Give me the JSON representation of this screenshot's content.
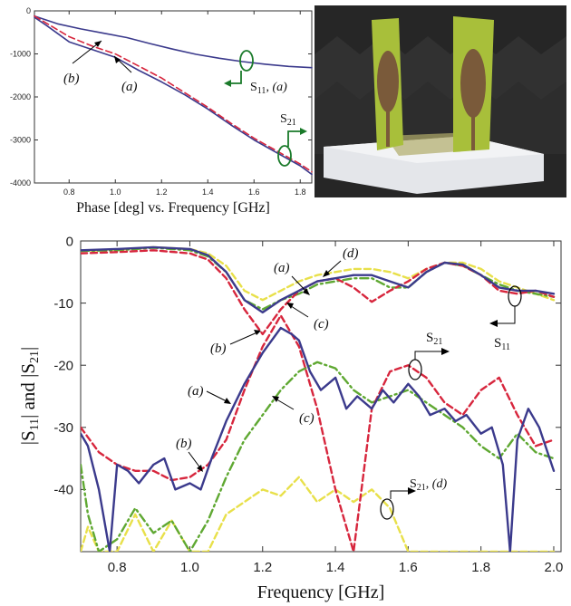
{
  "figure": {
    "photo_description_colors": {
      "wall": "#2a2a2a",
      "foam": "#e4e6ea",
      "board": "#a8bf3a",
      "patch": "#7a5a3a"
    }
  },
  "chart_data": [
    {
      "type": "line",
      "title": "",
      "caption": "Phase [deg] vs. Frequency [GHz]",
      "xlabel": "",
      "ylabel": "",
      "xlim": [
        0.65,
        1.85
      ],
      "ylim": [
        -4000,
        0
      ],
      "xticks": [
        "0.8",
        "1.0",
        "1.2",
        "1.4",
        "1.6",
        "1.8"
      ],
      "xtick_values": [
        0.8,
        1.0,
        1.2,
        1.4,
        1.6,
        1.8
      ],
      "yticks": [
        "0",
        "-1000",
        "-2000",
        "-3000",
        "-4000"
      ],
      "ytick_values": [
        0,
        -1000,
        -2000,
        -3000,
        -4000
      ],
      "grid": false,
      "series": [
        {
          "key": "s11_a",
          "color": "#3b3a8c",
          "dash": "solid",
          "x": [
            0.65,
            0.75,
            0.85,
            0.95,
            1.05,
            1.15,
            1.25,
            1.35,
            1.45,
            1.55,
            1.65,
            1.75,
            1.85
          ],
          "y": [
            -120,
            -300,
            -420,
            -520,
            -620,
            -760,
            -890,
            -1010,
            -1100,
            -1180,
            -1240,
            -1290,
            -1320
          ]
        },
        {
          "key": "s21_a",
          "color": "#3b3a8c",
          "dash": "solid",
          "x": [
            0.65,
            0.7,
            0.8,
            0.9,
            1.0,
            1.1,
            1.2,
            1.3,
            1.4,
            1.5,
            1.6,
            1.7,
            1.8,
            1.85
          ],
          "y": [
            -150,
            -330,
            -720,
            -900,
            -1080,
            -1380,
            -1650,
            -1950,
            -2280,
            -2650,
            -3000,
            -3300,
            -3600,
            -3800
          ]
        },
        {
          "key": "s21_b",
          "color": "#d7263d",
          "dash": "dashed",
          "x": [
            0.65,
            0.7,
            0.8,
            0.9,
            1.0,
            1.1,
            1.2,
            1.3,
            1.4,
            1.5,
            1.6,
            1.7,
            1.8,
            1.85
          ],
          "y": [
            -120,
            -280,
            -600,
            -820,
            -1000,
            -1280,
            -1560,
            -1900,
            -2240,
            -2610,
            -2960,
            -3260,
            -3560,
            -3740
          ]
        }
      ],
      "annotations": [
        "(b)",
        "(a)",
        "S11, (a)",
        "S21"
      ]
    },
    {
      "type": "line",
      "title": "",
      "xlabel": "Frequency [GHz]",
      "ylabel": "|S11| and |S21|",
      "xlim": [
        0.7,
        2.02
      ],
      "ylim": [
        -50,
        0
      ],
      "xticks": [
        "0.8",
        "1.0",
        "1.2",
        "1.4",
        "1.6",
        "1.8",
        "2.0"
      ],
      "xtick_values": [
        0.8,
        1.0,
        1.2,
        1.4,
        1.6,
        1.8,
        2.0
      ],
      "yticks": [
        "0",
        "-10",
        "-20",
        "-30",
        "-40"
      ],
      "ytick_values": [
        0,
        -10,
        -20,
        -30,
        -40
      ],
      "grid": false,
      "series": [
        {
          "key": "s11_d",
          "color": "#e8e04a",
          "dash": "dashed",
          "x": [
            0.7,
            0.8,
            0.9,
            1.0,
            1.05,
            1.1,
            1.15,
            1.2,
            1.25,
            1.3,
            1.35,
            1.4,
            1.45,
            1.5,
            1.55,
            1.6,
            1.65,
            1.7,
            1.75,
            1.8,
            1.85,
            1.9,
            1.95,
            2.0
          ],
          "y": [
            -1.6,
            -1.4,
            -1.0,
            -1.3,
            -2.0,
            -4.0,
            -8.0,
            -9.5,
            -8.0,
            -6.5,
            -5.5,
            -5.0,
            -4.5,
            -4.5,
            -5.0,
            -6.0,
            -4.5,
            -3.5,
            -3.5,
            -4.5,
            -6.5,
            -7.5,
            -8.5,
            -9.5
          ]
        },
        {
          "key": "s11_c",
          "color": "#5fa832",
          "dash": "dashdot",
          "x": [
            0.7,
            0.8,
            0.9,
            1.0,
            1.05,
            1.1,
            1.15,
            1.2,
            1.25,
            1.3,
            1.35,
            1.4,
            1.45,
            1.5,
            1.55,
            1.6,
            1.65,
            1.7,
            1.75,
            1.8,
            1.85,
            1.9,
            1.95,
            2.0
          ],
          "y": [
            -1.6,
            -1.5,
            -1.1,
            -1.5,
            -2.5,
            -5.0,
            -9.5,
            -11.0,
            -9.5,
            -8.5,
            -7.0,
            -6.5,
            -6.0,
            -6.0,
            -7.5,
            -7.5,
            -5.0,
            -3.5,
            -4.0,
            -5.5,
            -7.0,
            -8.0,
            -8.5,
            -9.0
          ]
        },
        {
          "key": "s11_b",
          "color": "#d7263d",
          "dash": "dashed",
          "x": [
            0.7,
            0.8,
            0.9,
            1.0,
            1.05,
            1.1,
            1.15,
            1.2,
            1.25,
            1.3,
            1.35,
            1.4,
            1.45,
            1.5,
            1.55,
            1.6,
            1.65,
            1.7,
            1.75,
            1.8,
            1.85,
            1.9,
            1.95,
            2.0
          ],
          "y": [
            -2.0,
            -1.8,
            -1.5,
            -2.0,
            -3.0,
            -6.0,
            -11.0,
            -15.0,
            -11.0,
            -8.0,
            -6.5,
            -6.0,
            -7.5,
            -9.8,
            -8.0,
            -6.5,
            -4.5,
            -3.5,
            -4.0,
            -5.5,
            -8.0,
            -8.5,
            -8.0,
            -9.0
          ]
        },
        {
          "key": "s11_a",
          "color": "#3b3a8c",
          "dash": "solid",
          "x": [
            0.7,
            0.8,
            0.9,
            1.0,
            1.05,
            1.1,
            1.15,
            1.2,
            1.25,
            1.3,
            1.35,
            1.4,
            1.45,
            1.5,
            1.55,
            1.6,
            1.65,
            1.7,
            1.75,
            1.8,
            1.85,
            1.9,
            1.95,
            2.0
          ],
          "y": [
            -1.5,
            -1.3,
            -1.0,
            -1.3,
            -2.3,
            -5.0,
            -9.5,
            -11.5,
            -9.5,
            -8.0,
            -6.5,
            -6.0,
            -5.5,
            -5.5,
            -6.5,
            -7.5,
            -5.0,
            -3.5,
            -3.8,
            -5.5,
            -7.5,
            -8.0,
            -8.0,
            -8.5
          ]
        },
        {
          "key": "s21_d",
          "color": "#e8e04a",
          "dash": "dashed",
          "x": [
            0.7,
            0.72,
            0.75,
            0.8,
            0.85,
            0.9,
            0.95,
            1.0,
            1.05,
            1.1,
            1.15,
            1.2,
            1.25,
            1.3,
            1.35,
            1.4,
            1.45,
            1.5,
            1.55,
            1.6,
            1.65,
            1.7,
            1.8,
            1.9,
            1.95,
            2.0
          ],
          "y": [
            -50,
            -46,
            -50,
            -50,
            -44,
            -50,
            -45,
            -50,
            -50,
            -44,
            -42,
            -40,
            -41,
            -38,
            -42,
            -40,
            -42,
            -40,
            -43,
            -50,
            -50,
            -50,
            -50,
            -50,
            -50,
            -50
          ]
        },
        {
          "key": "s21_c",
          "color": "#5fa832",
          "dash": "dashdot",
          "x": [
            0.7,
            0.72,
            0.75,
            0.8,
            0.85,
            0.9,
            0.95,
            1.0,
            1.05,
            1.1,
            1.15,
            1.2,
            1.25,
            1.3,
            1.35,
            1.4,
            1.45,
            1.5,
            1.55,
            1.6,
            1.65,
            1.7,
            1.75,
            1.8,
            1.85,
            1.9,
            1.95,
            2.0
          ],
          "y": [
            -36,
            -44,
            -50,
            -48,
            -43,
            -47,
            -45,
            -50,
            -45,
            -38,
            -32,
            -28,
            -24,
            -21,
            -19.5,
            -20.5,
            -24,
            -26,
            -25,
            -24,
            -26,
            -28,
            -30,
            -33,
            -35,
            -31,
            -34,
            -35
          ]
        },
        {
          "key": "s21_b",
          "color": "#d7263d",
          "dash": "dashed",
          "x": [
            0.7,
            0.75,
            0.8,
            0.85,
            0.9,
            0.95,
            1.0,
            1.05,
            1.1,
            1.15,
            1.2,
            1.25,
            1.3,
            1.35,
            1.4,
            1.45,
            1.5,
            1.55,
            1.6,
            1.65,
            1.7,
            1.75,
            1.8,
            1.85,
            1.9,
            1.95,
            2.0
          ],
          "y": [
            -30,
            -34,
            -36,
            -37,
            -37,
            -38.5,
            -38,
            -36,
            -32,
            -24,
            -17,
            -12,
            -17,
            -27,
            -40,
            -50,
            -27,
            -21,
            -20,
            -22,
            -26,
            -28,
            -24,
            -22,
            -28,
            -33,
            -32
          ]
        },
        {
          "key": "s21_a",
          "color": "#3b3a8c",
          "dash": "solid",
          "x": [
            0.7,
            0.72,
            0.75,
            0.78,
            0.8,
            0.83,
            0.86,
            0.9,
            0.93,
            0.96,
            1.0,
            1.03,
            1.06,
            1.1,
            1.15,
            1.2,
            1.25,
            1.28,
            1.3,
            1.33,
            1.36,
            1.4,
            1.43,
            1.46,
            1.5,
            1.53,
            1.56,
            1.6,
            1.63,
            1.66,
            1.7,
            1.73,
            1.76,
            1.8,
            1.83,
            1.86,
            1.88,
            1.9,
            1.93,
            1.96,
            2.0
          ],
          "y": [
            -31,
            -33,
            -40,
            -50,
            -36,
            -37,
            -39,
            -36,
            -35,
            -40,
            -39,
            -40,
            -35,
            -29,
            -23,
            -18,
            -14,
            -15,
            -16,
            -21,
            -24,
            -22,
            -27,
            -25,
            -27,
            -24,
            -26,
            -23,
            -25,
            -28,
            -27,
            -29,
            -28,
            -31,
            -30,
            -36,
            -50,
            -32,
            -27,
            -30,
            -37
          ]
        }
      ],
      "annotations": [
        "(a)",
        "(d)",
        "(c)",
        "(b)",
        "S11",
        "S21",
        "(a)",
        "(c)",
        "(b)",
        "S21, (d)"
      ]
    }
  ]
}
